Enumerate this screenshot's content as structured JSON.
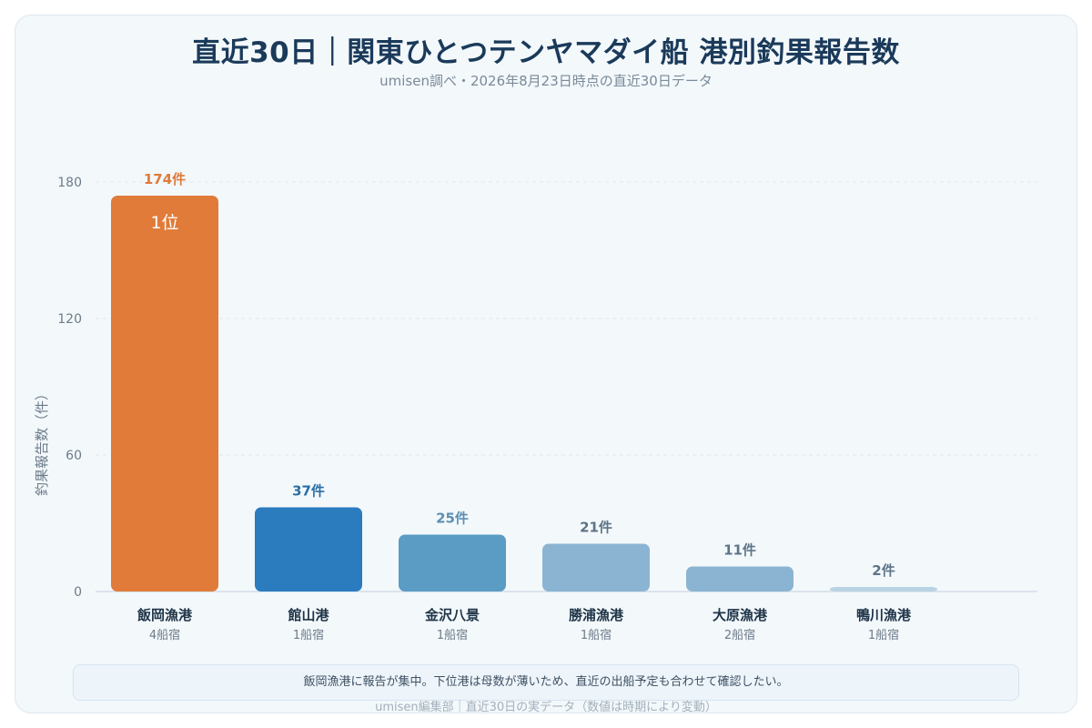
{
  "title": "直近30日｜関東ひとつテンヤマダイ船 港別釣果報告数",
  "subtitle": "umisen調べ・2026年8月23日時点の直近30日データ",
  "note": "飯岡漁港に報告が集中。下位港は母数が薄いため、直近の出船予定も合わせて確認したい。",
  "footer": "umisen編集部｜直近30日の実データ（数値は時期により変動）",
  "chart_data": {
    "type": "bar",
    "title": "直近30日｜関東ひとつテンヤマダイ船 港別釣果報告数",
    "subtitle": "umisen調べ・2026年8月23日時点の直近30日データ",
    "ylabel": "釣果報告数（件）",
    "xlabel": "",
    "ylim": [
      0,
      180
    ],
    "yticks": [
      "0",
      "60",
      "120",
      "180"
    ],
    "grid": true,
    "categories": [
      "飯岡漁港",
      "館山港",
      "金沢八景",
      "勝浦漁港",
      "大原漁港",
      "鴨川漁港"
    ],
    "values": [
      174,
      37,
      25,
      21,
      11,
      2
    ],
    "value_labels": [
      "174件",
      "37件",
      "25件",
      "21件",
      "11件",
      "2件"
    ],
    "sublabels": [
      "4船宿",
      "1船宿",
      "1船宿",
      "1船宿",
      "2船宿",
      "1船宿"
    ],
    "rank_label": "1位",
    "colors": [
      "#e07b39",
      "#2b7bbf",
      "#5b9cc4",
      "#8bb4d2",
      "#8bb4d2",
      "#b9d3e3"
    ],
    "label_colors": [
      "#e07b39",
      "#2b6ea6",
      "#5b8fb2",
      "#5d7488",
      "#5d7488",
      "#5d7488"
    ]
  }
}
